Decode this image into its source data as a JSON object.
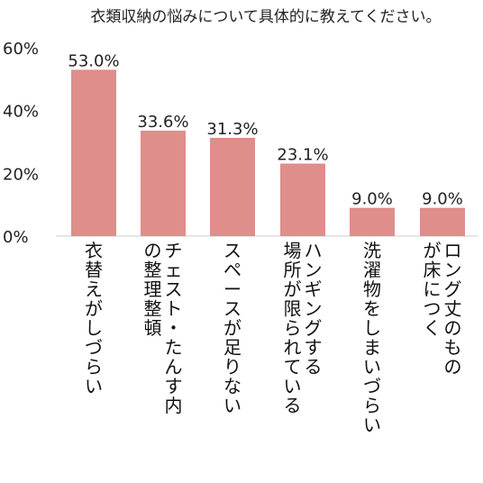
{
  "chart_data": {
    "type": "bar",
    "title": "衣類収納の悩みについて具体的に教えてください。",
    "xlabel": "",
    "ylabel": "",
    "ylim": [
      0,
      60
    ],
    "yticks": [
      "0%",
      "20%",
      "40%",
      "60%"
    ],
    "ytick_values": [
      0,
      20,
      40,
      60
    ],
    "grid": false,
    "bar_color": "#df8e8b",
    "categories": [
      [
        "衣",
        "替",
        "え",
        "が",
        "し",
        "づ",
        "ら",
        "い"
      ],
      [
        "チ",
        "ェ",
        "ス",
        "ト",
        "・",
        "た",
        "ん",
        "す",
        "内",
        "の",
        "整",
        "理",
        "整",
        "頓"
      ],
      [
        "ス",
        "ペ",
        "ー",
        "ス",
        "が",
        "足",
        "り",
        "な",
        "い"
      ],
      [
        "ハ",
        "ン",
        "ギ",
        "ン",
        "グ",
        "す",
        "る",
        "場",
        "所",
        "が",
        "限",
        "ら",
        "れ",
        "て",
        "い",
        "る"
      ],
      [
        "洗",
        "濯",
        "物",
        "を",
        "し",
        "ま",
        "い",
        "づ",
        "ら",
        "い"
      ],
      [
        "ロ",
        "ン",
        "グ",
        "丈",
        "の",
        "も",
        "の",
        "が",
        "床",
        "に",
        "つ",
        "く"
      ]
    ],
    "category_columns": [
      [
        [
          "衣",
          "替",
          "え",
          "が",
          "し",
          "づ",
          "ら",
          "い"
        ]
      ],
      [
        [
          "チ",
          "ェ",
          "ス",
          "ト",
          "・",
          "た",
          "ん",
          "す",
          "内"
        ],
        [
          "の",
          "整",
          "理",
          "整",
          "頓"
        ]
      ],
      [
        [
          "ス",
          "ペ",
          "ー",
          "ス",
          "が",
          "足",
          "り",
          "な",
          "い"
        ]
      ],
      [
        [
          "ハ",
          "ン",
          "ギ",
          "ン",
          "グ",
          "す",
          "る"
        ],
        [
          "場",
          "所",
          "が",
          "限",
          "ら",
          "れ",
          "て",
          "い",
          "る"
        ]
      ],
      [
        [
          "洗",
          "濯",
          "物",
          "を",
          "し",
          "ま",
          "い",
          "づ",
          "ら",
          "い"
        ]
      ],
      [
        [
          "ロ",
          "ン",
          "グ",
          "丈",
          "の",
          "も",
          "の"
        ],
        [
          "が",
          "床",
          "に",
          "つ",
          "く"
        ]
      ]
    ],
    "values": [
      53.0,
      33.6,
      31.3,
      23.1,
      9.0,
      9.0
    ],
    "value_labels": [
      "53.0%",
      "33.6%",
      "31.3%",
      "23.1%",
      "9.0%",
      "9.0%"
    ]
  }
}
